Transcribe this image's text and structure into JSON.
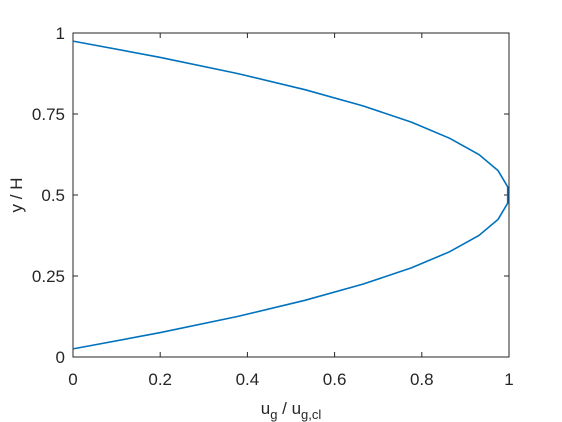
{
  "chart_data": {
    "type": "line",
    "xlabel": {
      "parts": [
        "u",
        "g",
        " / u",
        "g,cl"
      ]
    },
    "ylabel": "y / H",
    "series": [
      {
        "color": "#0072bd",
        "x": [
          0,
          0.199,
          0.377,
          0.532,
          0.665,
          0.776,
          0.864,
          0.931,
          0.975,
          0.997,
          0.997,
          0.975,
          0.931,
          0.864,
          0.776,
          0.665,
          0.532,
          0.377,
          0.199,
          0
        ],
        "values": [
          0.025,
          0.075,
          0.125,
          0.175,
          0.225,
          0.275,
          0.325,
          0.375,
          0.425,
          0.475,
          0.525,
          0.575,
          0.625,
          0.675,
          0.725,
          0.775,
          0.825,
          0.875,
          0.925,
          0.975
        ]
      }
    ],
    "xlim": [
      0,
      1
    ],
    "xticks": [
      0,
      0.2,
      0.4,
      0.6,
      0.8,
      1
    ],
    "ylim": [
      0,
      1
    ],
    "yticks": [
      0,
      0.25,
      0.5,
      0.75,
      1
    ],
    "box": true
  }
}
